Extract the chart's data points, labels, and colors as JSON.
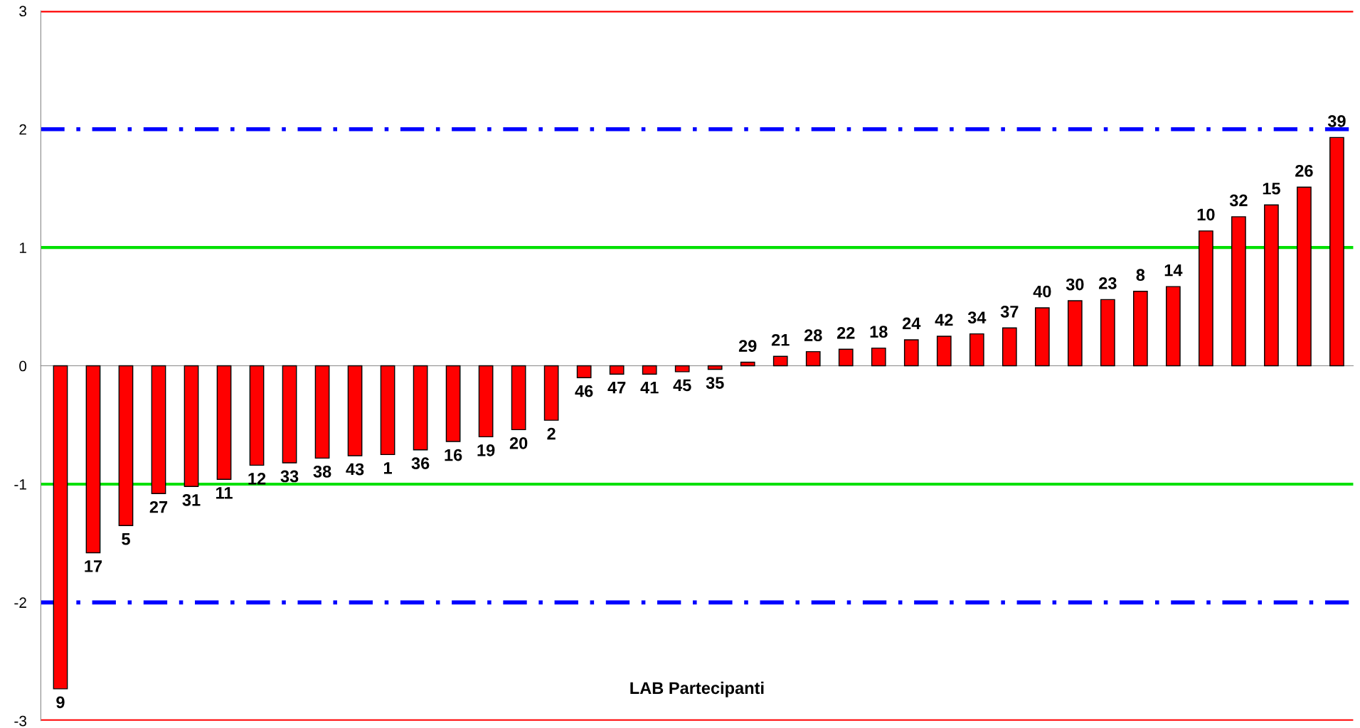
{
  "chart_data": {
    "type": "bar",
    "xlabel": "LAB Partecipanti",
    "categories": [
      "9",
      "17",
      "5",
      "27",
      "31",
      "11",
      "12",
      "33",
      "38",
      "43",
      "1",
      "36",
      "16",
      "19",
      "20",
      "2",
      "46",
      "47",
      "41",
      "45",
      "35",
      "29",
      "21",
      "28",
      "22",
      "18",
      "24",
      "42",
      "34",
      "37",
      "40",
      "30",
      "23",
      "8",
      "14",
      "10",
      "32",
      "15",
      "26",
      "39"
    ],
    "values": [
      -2.73,
      -1.58,
      -1.35,
      -1.08,
      -1.02,
      -0.96,
      -0.84,
      -0.82,
      -0.78,
      -0.76,
      -0.75,
      -0.71,
      -0.64,
      -0.6,
      -0.54,
      -0.46,
      -0.1,
      -0.07,
      -0.07,
      -0.05,
      -0.03,
      0.03,
      0.08,
      0.12,
      0.14,
      0.15,
      0.22,
      0.25,
      0.27,
      0.32,
      0.49,
      0.55,
      0.56,
      0.63,
      0.67,
      1.14,
      1.26,
      1.36,
      1.51,
      1.93
    ],
    "color": "#ff0000",
    "ylim": [
      -3,
      3
    ],
    "yticks": [
      3,
      2,
      1,
      0,
      -1,
      -2,
      -3
    ],
    "legend": false,
    "ref_lines": [
      {
        "axis": "y",
        "value": 3,
        "color": "#ff0000",
        "line_style": "solid"
      },
      {
        "axis": "y",
        "value": -3,
        "color": "#ff0000",
        "line_style": "solid"
      },
      {
        "axis": "y",
        "value": 2,
        "color": "#0000ff",
        "line_style": "dashdot"
      },
      {
        "axis": "y",
        "value": -2,
        "color": "#0000ff",
        "line_style": "dashdot"
      },
      {
        "axis": "y",
        "value": 1,
        "color": "#00e000",
        "line_style": "solid"
      },
      {
        "axis": "y",
        "value": -1,
        "color": "#00e000",
        "line_style": "solid"
      }
    ]
  }
}
